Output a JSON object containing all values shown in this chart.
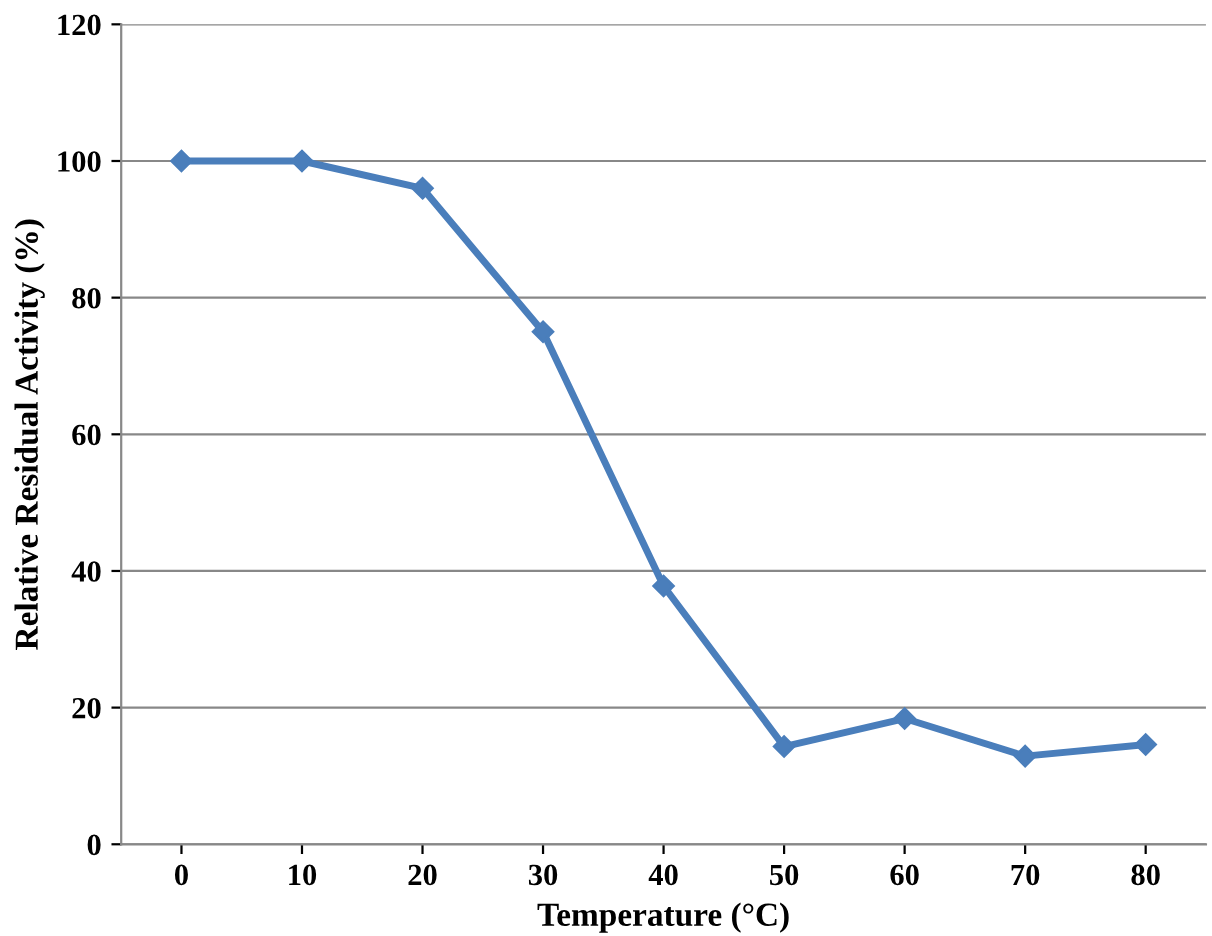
{
  "chart_data": {
    "type": "line",
    "xlabel": "Temperature (°C)",
    "ylabel": "Relative Residual Activity (%)",
    "categories": [
      "0",
      "10",
      "20",
      "30",
      "40",
      "50",
      "60",
      "70",
      "80"
    ],
    "series": [
      {
        "color": "#4a7ebb",
        "values": [
          100,
          100,
          96,
          75,
          37.8,
          14.3,
          18.4,
          12.9,
          14.6
        ]
      }
    ],
    "ylim": [
      0,
      120
    ],
    "yticks": [
      0,
      20,
      40,
      60,
      80,
      100,
      120
    ],
    "grid": "y",
    "marker": "diamond",
    "line_style": "solid",
    "legend": false
  }
}
